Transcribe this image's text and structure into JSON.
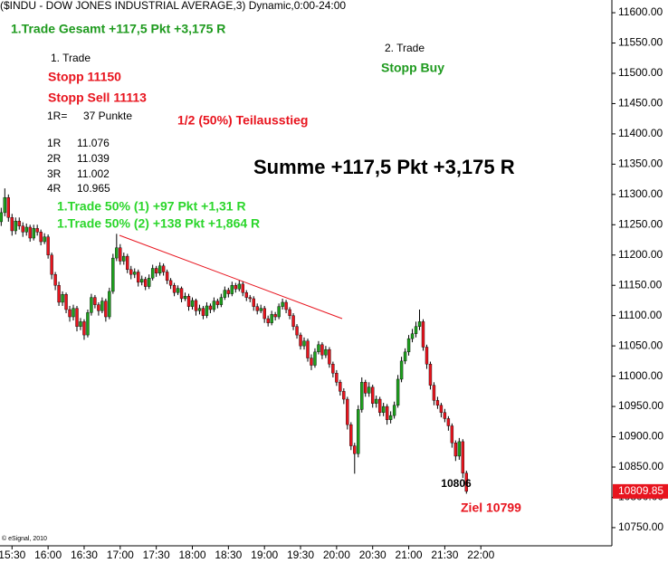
{
  "chart_data": {
    "type": "candlestick",
    "title": "($INDU - DOW JONES INDUSTRIAL AVERAGE,3) Dynamic,0:00-24:00",
    "up_color": "#1ea01e",
    "down_color": "#e8141e",
    "xlim": [
      920,
      1429
    ],
    "ylim": [
      10720,
      11621
    ],
    "xticks": [
      {
        "value": 930,
        "label": "15:30"
      },
      {
        "value": 960,
        "label": "16:00"
      },
      {
        "value": 990,
        "label": "16:30"
      },
      {
        "value": 1020,
        "label": "17:00"
      },
      {
        "value": 1050,
        "label": "17:30"
      },
      {
        "value": 1080,
        "label": "18:00"
      },
      {
        "value": 1110,
        "label": "18:30"
      },
      {
        "value": 1140,
        "label": "19:00"
      },
      {
        "value": 1170,
        "label": "19:30"
      },
      {
        "value": 1200,
        "label": "20:00"
      },
      {
        "value": 1230,
        "label": "20:30"
      },
      {
        "value": 1260,
        "label": "21:00"
      },
      {
        "value": 1290,
        "label": "21:30"
      },
      {
        "value": 1320,
        "label": "22:00"
      }
    ],
    "yticks": [
      {
        "value": 11600,
        "label": "11600.00"
      },
      {
        "value": 11550,
        "label": "11550.00"
      },
      {
        "value": 11500,
        "label": "11500.00"
      },
      {
        "value": 11450,
        "label": "11450.00"
      },
      {
        "value": 11400,
        "label": "11400.00"
      },
      {
        "value": 11350,
        "label": "11350.00"
      },
      {
        "value": 11300,
        "label": "11300.00"
      },
      {
        "value": 11250,
        "label": "11250.00"
      },
      {
        "value": 11200,
        "label": "11200.00"
      },
      {
        "value": 11150,
        "label": "11150.00"
      },
      {
        "value": 11100,
        "label": "11100.00"
      },
      {
        "value": 11050,
        "label": "11050.00"
      },
      {
        "value": 11000,
        "label": "11000.00"
      },
      {
        "value": 10950,
        "label": "10950.00"
      },
      {
        "value": 10900,
        "label": "10900.00"
      },
      {
        "value": 10850,
        "label": "10850.00"
      },
      {
        "value": 10800,
        "label": "10800.00"
      },
      {
        "value": 10750,
        "label": "10750.00"
      }
    ],
    "annotations": [
      "1.Trade Gesamt +117,5 Pkt +3,175 R",
      "1. Trade",
      "Stopp 11150",
      "Stopp Sell 11113",
      "1R=",
      "37 Punkte",
      "1/2 (50%) Teilausstieg",
      "1R",
      "11.076",
      "2R",
      "11.039",
      "3R",
      "11.002",
      "4R",
      "10.965",
      "Summe +117,5 Pkt +3,175 R",
      "1.Trade 50% (1) +97 Pkt +1,31 R",
      "1.Trade 50% (2) +138 Pkt +1,864 R",
      "2. Trade",
      "Stopp Buy",
      "Ziel 10799",
      "© eSignal, 2010"
    ],
    "x": [
      921,
      924,
      927,
      930,
      933,
      936,
      939,
      942,
      945,
      948,
      951,
      954,
      957,
      960,
      963,
      966,
      969,
      972,
      975,
      978,
      981,
      984,
      987,
      990,
      993,
      996,
      999,
      1002,
      1005,
      1008,
      1011,
      1014,
      1017,
      1020,
      1023,
      1026,
      1029,
      1032,
      1035,
      1038,
      1041,
      1044,
      1047,
      1050,
      1053,
      1056,
      1059,
      1062,
      1065,
      1068,
      1071,
      1074,
      1077,
      1080,
      1083,
      1086,
      1089,
      1092,
      1095,
      1098,
      1101,
      1104,
      1107,
      1110,
      1113,
      1116,
      1119,
      1122,
      1125,
      1128,
      1131,
      1134,
      1137,
      1140,
      1143,
      1146,
      1149,
      1152,
      1155,
      1158,
      1161,
      1164,
      1167,
      1170,
      1173,
      1176,
      1179,
      1182,
      1185,
      1188,
      1191,
      1194,
      1197,
      1200,
      1203,
      1206,
      1209,
      1212,
      1215,
      1218,
      1221,
      1224,
      1227,
      1230,
      1233,
      1236,
      1239,
      1242,
      1245,
      1248,
      1251,
      1254,
      1257,
      1260,
      1263,
      1266,
      1269,
      1272,
      1275,
      1278,
      1281,
      1284,
      1287,
      1290,
      1293,
      1296,
      1299,
      1302,
      1305,
      1308
    ],
    "open": [
      11255,
      11270,
      11295,
      11262,
      11240,
      11256,
      11248,
      11238,
      11246,
      11228,
      11244,
      11238,
      11222,
      11230,
      11200,
      11168,
      11150,
      11122,
      11135,
      11110,
      11098,
      11112,
      11082,
      11090,
      11068,
      11105,
      11130,
      11118,
      11108,
      11124,
      11098,
      11140,
      11195,
      11212,
      11190,
      11198,
      11176,
      11168,
      11172,
      11155,
      11160,
      11148,
      11162,
      11178,
      11170,
      11182,
      11172,
      11158,
      11150,
      11138,
      11145,
      11128,
      11132,
      11115,
      11125,
      11108,
      11112,
      11100,
      11116,
      11110,
      11124,
      11118,
      11130,
      11142,
      11136,
      11150,
      11144,
      11152,
      11138,
      11130,
      11128,
      11115,
      11108,
      11112,
      11095,
      11088,
      11102,
      11098,
      11115,
      11122,
      11110,
      11100,
      11082,
      11068,
      11050,
      11058,
      11030,
      11018,
      11040,
      11052,
      11035,
      11044,
      11020,
      11005,
      10990,
      10975,
      10962,
      10920,
      10885,
      10872,
      10945,
      10990,
      10972,
      10982,
      10955,
      10962,
      10940,
      10950,
      10928,
      10935,
      10952,
      10995,
      11025,
      11040,
      11062,
      11070,
      11082,
      11090,
      11048,
      11020,
      10985,
      10960,
      10952,
      10940,
      10930,
      10918,
      10890,
      10868,
      10892,
      10840
    ],
    "high": [
      11278,
      11310,
      11300,
      11268,
      11262,
      11262,
      11254,
      11252,
      11250,
      11250,
      11250,
      11242,
      11236,
      11234,
      11204,
      11172,
      11156,
      11140,
      11138,
      11116,
      11118,
      11116,
      11096,
      11094,
      11110,
      11136,
      11134,
      11122,
      11130,
      11128,
      11146,
      11202,
      11235,
      11218,
      11204,
      11202,
      11182,
      11178,
      11176,
      11166,
      11164,
      11168,
      11184,
      11182,
      11188,
      11186,
      11176,
      11162,
      11154,
      11150,
      11148,
      11138,
      11136,
      11130,
      11128,
      11118,
      11116,
      11122,
      11120,
      11130,
      11128,
      11136,
      11148,
      11146,
      11156,
      11154,
      11158,
      11156,
      11142,
      11134,
      11132,
      11120,
      11118,
      11116,
      11100,
      11108,
      11106,
      11120,
      11128,
      11126,
      11114,
      11104,
      11086,
      11072,
      11064,
      11062,
      11036,
      11046,
      11058,
      11056,
      11050,
      11048,
      11024,
      11010,
      10994,
      10980,
      10966,
      10924,
      10890,
      10952,
      10998,
      10994,
      10990,
      10986,
      10968,
      10966,
      10956,
      10954,
      10942,
      10958,
      11002,
      11032,
      11046,
      11068,
      11078,
      11090,
      11110,
      11094,
      11052,
      11024,
      10990,
      10966,
      10956,
      10946,
      10934,
      10922,
      10894,
      10898,
      10896,
      10844
    ],
    "low": [
      11248,
      11264,
      11255,
      11232,
      11234,
      11242,
      11230,
      11232,
      11222,
      11224,
      11232,
      11216,
      11218,
      11194,
      11160,
      11142,
      11116,
      11116,
      11104,
      11090,
      11092,
      11074,
      11076,
      11060,
      11064,
      11100,
      11112,
      11100,
      11104,
      11090,
      11094,
      11136,
      11190,
      11184,
      11184,
      11170,
      11160,
      11162,
      11148,
      11150,
      11142,
      11144,
      11158,
      11164,
      11166,
      11166,
      11152,
      11144,
      11132,
      11134,
      11122,
      11124,
      11108,
      11110,
      11100,
      11102,
      11094,
      11096,
      11104,
      11106,
      11112,
      11114,
      11126,
      11130,
      11132,
      11138,
      11140,
      11132,
      11124,
      11122,
      11108,
      11102,
      11104,
      11088,
      11082,
      11084,
      11092,
      11094,
      11110,
      11104,
      11094,
      11076,
      11062,
      11044,
      11044,
      11024,
      11010,
      11014,
      11036,
      11028,
      11030,
      11014,
      10998,
      10984,
      10968,
      10954,
      10912,
      10878,
      10839,
      10866,
      10940,
      10966,
      10966,
      10948,
      10948,
      10934,
      10934,
      10920,
      10922,
      10930,
      10948,
      10990,
      11020,
      11034,
      11056,
      11064,
      11076,
      11042,
      11012,
      10978,
      10952,
      10946,
      10932,
      10924,
      10910,
      10882,
      10860,
      10862,
      10832,
      10806
    ],
    "close": [
      11270,
      11295,
      11262,
      11240,
      11256,
      11248,
      11238,
      11246,
      11228,
      11244,
      11238,
      11222,
      11230,
      11200,
      11168,
      11150,
      11122,
      11135,
      11110,
      11098,
      11112,
      11082,
      11090,
      11068,
      11105,
      11130,
      11118,
      11108,
      11124,
      11098,
      11140,
      11195,
      11212,
      11190,
      11198,
      11176,
      11168,
      11172,
      11155,
      11160,
      11148,
      11162,
      11178,
      11170,
      11182,
      11172,
      11158,
      11150,
      11138,
      11145,
      11128,
      11132,
      11115,
      11125,
      11108,
      11112,
      11100,
      11116,
      11110,
      11124,
      11118,
      11130,
      11142,
      11136,
      11150,
      11144,
      11152,
      11138,
      11130,
      11128,
      11115,
      11108,
      11112,
      11095,
      11088,
      11102,
      11098,
      11115,
      11122,
      11110,
      11100,
      11082,
      11068,
      11050,
      11058,
      11030,
      11018,
      11040,
      11052,
      11035,
      11044,
      11020,
      11005,
      10990,
      10975,
      10962,
      10920,
      10885,
      10872,
      10945,
      10990,
      10972,
      10982,
      10955,
      10962,
      10940,
      10950,
      10928,
      10935,
      10952,
      10995,
      11025,
      11040,
      11062,
      11070,
      11082,
      11090,
      11048,
      11020,
      10985,
      10960,
      10952,
      10940,
      10930,
      10918,
      10890,
      10868,
      10892,
      10840,
      10809.85
    ]
  }
}
